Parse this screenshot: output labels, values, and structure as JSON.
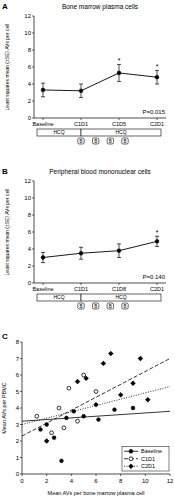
{
  "chart_data": [
    {
      "type": "line",
      "panel": "A",
      "title": "Bone marrow plasma cells",
      "y_label": "Least squares mean (±SE) AVs per cell",
      "categories": [
        "Baseline",
        "C1D1",
        "C1D5",
        "C2D1"
      ],
      "values": [
        3.3,
        3.2,
        5.3,
        4.8
      ],
      "errors": [
        0.8,
        0.8,
        1.0,
        0.8
      ],
      "significance": [
        null,
        null,
        "*",
        "*"
      ],
      "p_value": "P=0.015",
      "treatment_labels": [
        "HCQ",
        "HCQ"
      ],
      "pill_labels": [
        "B",
        "B",
        "B",
        "B"
      ],
      "ylim": [
        0,
        12
      ],
      "yticks": [
        0,
        2,
        4,
        6,
        8,
        10,
        12
      ],
      "color": "#000000",
      "marker": "circle"
    },
    {
      "type": "line",
      "panel": "B",
      "title": "Peripheral blood mononuclear cells",
      "y_label": "Least squares mean (±SE) AVs per cell",
      "categories": [
        "Baseline",
        "C1D1",
        "C1D8",
        "C2D1"
      ],
      "values": [
        3.0,
        3.5,
        3.8,
        4.9
      ],
      "errors": [
        0.6,
        0.7,
        0.8,
        0.6
      ],
      "significance": [
        null,
        null,
        null,
        "*"
      ],
      "p_value": "P=0.140",
      "treatment_labels": [
        "HCQ",
        "HCQ"
      ],
      "pill_labels": [
        "B",
        "B",
        "B",
        "B"
      ],
      "ylim": [
        0,
        12
      ],
      "yticks": [
        0,
        2,
        4,
        6,
        8,
        10,
        12
      ],
      "color": "#000000",
      "marker": "circle"
    },
    {
      "type": "scatter",
      "panel": "C",
      "x_label": "Mean AVs per bone marrow plasma cell",
      "y_label": "Mean AVs per PBMC",
      "xlim": [
        0,
        12
      ],
      "xticks": [
        0,
        2,
        4,
        6,
        8,
        10,
        12
      ],
      "ylim": [
        0,
        8
      ],
      "yticks": [
        0,
        1,
        2,
        3,
        4,
        5,
        6,
        7,
        8
      ],
      "legend": "lower right",
      "color": "#000000",
      "series": [
        {
          "name": "Baseline",
          "marker": "circle",
          "line_style": "solid",
          "x": [
            1.5,
            2.0,
            2.6,
            3.2,
            3.6,
            4.2,
            5.0,
            6.2,
            7.5,
            9.0
          ],
          "values": [
            2.7,
            3.0,
            2.2,
            0.8,
            3.4,
            3.8,
            3.5,
            3.3,
            3.9,
            4.0
          ],
          "fit": {
            "x": [
              0,
              12
            ],
            "values": [
              3.2,
              3.8
            ]
          }
        },
        {
          "name": "C1D1",
          "marker": "open-circle",
          "line_style": "dashed",
          "x": [
            1.2,
            2.4,
            3.0,
            3.8,
            4.5,
            5.0,
            6.0,
            3.4
          ],
          "values": [
            3.5,
            2.5,
            4.0,
            5.2,
            3.2,
            6.0,
            5.0,
            2.8
          ],
          "fit": {
            "x": [
              0,
              12
            ],
            "values": [
              2.3,
              7.0
            ]
          }
        },
        {
          "name": "C2D1",
          "marker": "diamond",
          "line_style": "dotted",
          "x": [
            2.0,
            4.5,
            5.2,
            6.0,
            6.6,
            7.2,
            8.0,
            9.0,
            9.6,
            10.2
          ],
          "values": [
            2.0,
            5.6,
            5.8,
            4.2,
            6.7,
            7.3,
            4.8,
            5.5,
            7.0,
            4.5
          ],
          "fit": {
            "x": [
              0,
              12
            ],
            "values": [
              3.0,
              5.3
            ]
          }
        }
      ]
    }
  ]
}
